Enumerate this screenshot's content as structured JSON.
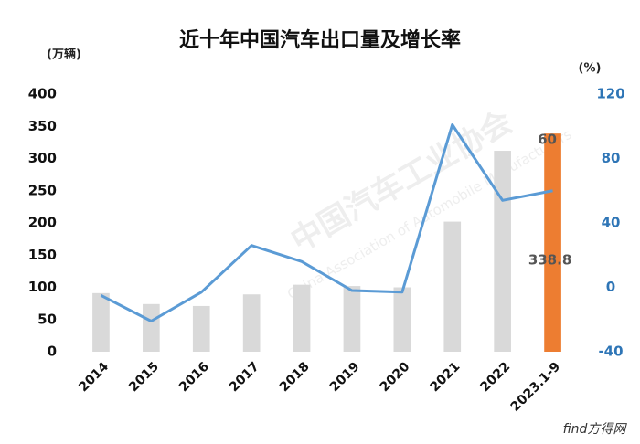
{
  "chart_data": {
    "type": "bar_line",
    "title": "近十年中国汽车出口量及增长率",
    "y_label": "(万辆)",
    "y2_label": "(%)",
    "watermark": [
      "中国汽车工业协会",
      "China Association of Automobile Manufacturers"
    ],
    "source_mark": "find方得网",
    "categories": [
      "2014",
      "2015",
      "2016",
      "2017",
      "2018",
      "2019",
      "2020",
      "2021",
      "2022",
      "2023.1-9"
    ],
    "series": [
      {
        "type": "bar",
        "values": [
          91,
          74,
          71,
          89,
          104,
          102,
          100,
          202,
          312,
          338.8
        ],
        "colors": [
          "#d9d9d9",
          "#d9d9d9",
          "#d9d9d9",
          "#d9d9d9",
          "#d9d9d9",
          "#d9d9d9",
          "#d9d9d9",
          "#d9d9d9",
          "#d9d9d9",
          "#ed7d31"
        ]
      },
      {
        "type": "line",
        "axis": "y2",
        "color": "#5b9bd5",
        "values": [
          -5,
          -21,
          -3,
          26,
          16,
          -2,
          -3,
          101,
          54,
          60
        ]
      }
    ],
    "ylim": [
      0,
      400
    ],
    "yticks": [
      0,
      50,
      100,
      150,
      200,
      250,
      300,
      350,
      400
    ],
    "y2lim": [
      -40,
      120
    ],
    "y2ticks": [
      -40,
      0,
      40,
      80,
      120
    ]
  }
}
